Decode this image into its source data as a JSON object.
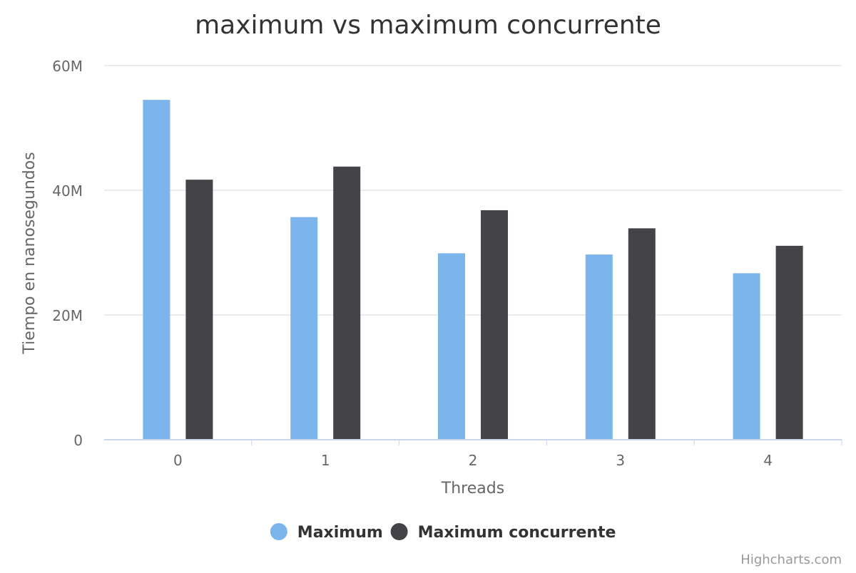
{
  "chart_data": {
    "type": "bar",
    "title": "maximum vs maximum concurrente",
    "xlabel": "Threads",
    "ylabel": "Tiempo en nanosegundos",
    "categories": [
      "0",
      "1",
      "2",
      "3",
      "4"
    ],
    "ylim": [
      0,
      60000000
    ],
    "yticks": [
      {
        "value": 0,
        "label": "0"
      },
      {
        "value": 20000000,
        "label": "20M"
      },
      {
        "value": 40000000,
        "label": "40M"
      },
      {
        "value": 60000000,
        "label": "60M"
      }
    ],
    "grid": true,
    "legend_position": "bottom-center",
    "series": [
      {
        "name": "Maximum",
        "color": "#7cb5ec",
        "values": [
          54500000,
          35700000,
          29900000,
          29700000,
          26700000
        ]
      },
      {
        "name": "Maximum concurrente",
        "color": "#434348",
        "values": [
          41700000,
          43800000,
          36800000,
          33900000,
          31100000
        ]
      }
    ]
  },
  "credits": "Highcharts.com"
}
